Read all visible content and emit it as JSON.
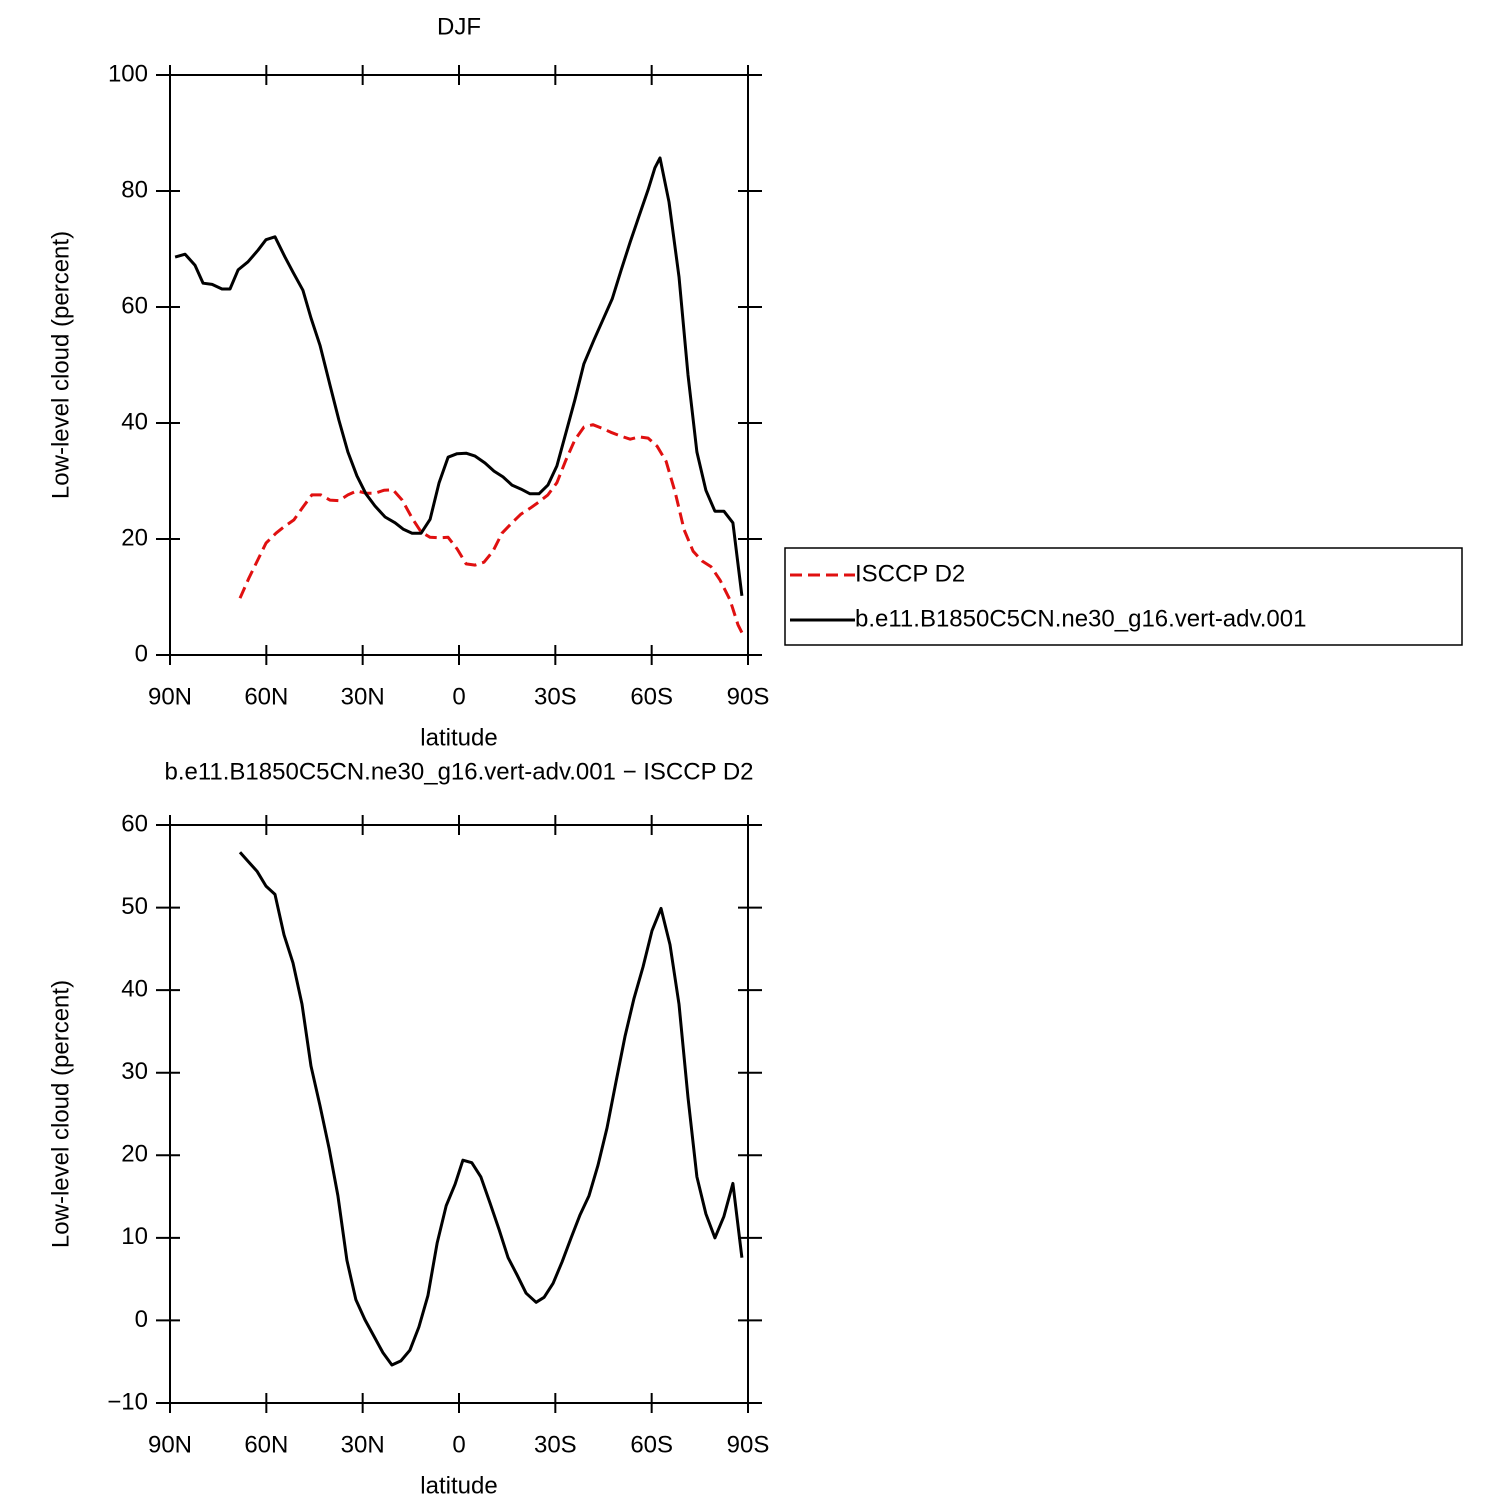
{
  "chart_data": [
    {
      "type": "line",
      "title": "DJF",
      "xlabel": "latitude",
      "ylabel": "Low-level cloud (percent)",
      "xlim": [
        90,
        -90
      ],
      "xticks": [
        {
          "value": 90,
          "label": "90N"
        },
        {
          "value": 60,
          "label": "60N"
        },
        {
          "value": 30,
          "label": "30N"
        },
        0,
        {
          "value": -30,
          "label": "30S"
        },
        {
          "value": -60,
          "label": "60S"
        },
        {
          "value": -90,
          "label": "90S"
        }
      ],
      "ylim": [
        0,
        100
      ],
      "yticks": [
        0,
        20,
        40,
        60,
        80,
        100
      ],
      "legend": "right",
      "series": [
        {
          "name": "ISCCP D2",
          "color": "#e01010",
          "linestyle": "dashed",
          "x": [
            68.2,
            65.4,
            60.1,
            57.0,
            54.5,
            51.4,
            48.6,
            45.8,
            43.0,
            40.2,
            37.4,
            34.6,
            31.8,
            29.0,
            26.2,
            23.4,
            20.6,
            17.7,
            14.6,
            11.8,
            9.0,
            6.2,
            3.4,
            0.6,
            -2.2,
            -5.0,
            -7.8,
            -10.6,
            -13.4,
            -16.5,
            -19.3,
            -22.1,
            -24.9,
            -27.7,
            -30.5,
            -33.3,
            -36.1,
            -38.9,
            -41.7,
            -44.5,
            -47.3,
            -50.1,
            -53.3,
            -56.1,
            -58.9,
            -61.7,
            -64.5,
            -67.3,
            -70.1,
            -72.9,
            -75.7,
            -78.5,
            -81.3,
            -84.4,
            -86.9,
            -88.8
          ],
          "values": [
            9.8,
            13.3,
            19.3,
            21.0,
            22.1,
            23.3,
            25.5,
            27.6,
            27.6,
            26.7,
            26.6,
            27.6,
            28.3,
            27.9,
            27.9,
            28.4,
            28.5,
            26.7,
            23.6,
            21.2,
            20.3,
            20.2,
            20.3,
            18.3,
            15.7,
            15.5,
            16.0,
            17.9,
            21.0,
            22.8,
            24.3,
            25.3,
            26.4,
            27.6,
            29.7,
            33.6,
            37.1,
            39.3,
            39.7,
            39.1,
            38.4,
            37.8,
            37.2,
            37.6,
            37.4,
            36.0,
            33.4,
            28.1,
            21.6,
            17.9,
            16.2,
            15.2,
            12.9,
            9.5,
            5.2,
            3.1
          ]
        },
        {
          "name": "b.e11.B1850C5CN.ne30_g16.vert-adv.001",
          "color": "#000000",
          "linestyle": "solid",
          "x": [
            88.4,
            85.3,
            82.2,
            79.7,
            76.9,
            73.8,
            71.3,
            68.8,
            65.7,
            62.6,
            60.1,
            57.3,
            54.2,
            51.7,
            48.6,
            46.1,
            43.3,
            40.2,
            37.4,
            34.6,
            31.8,
            29.0,
            26.2,
            23.0,
            19.9,
            17.4,
            14.6,
            11.8,
            9.0,
            6.2,
            3.4,
            0.6,
            -2.2,
            -5.0,
            -8.1,
            -10.9,
            -13.7,
            -16.5,
            -19.3,
            -22.1,
            -24.9,
            -27.7,
            -30.5,
            -33.3,
            -36.1,
            -38.9,
            -42.0,
            -44.8,
            -47.7,
            -50.5,
            -53.3,
            -56.1,
            -58.9,
            -61.0,
            -62.6,
            -65.4,
            -68.5,
            -71.3,
            -74.1,
            -76.9,
            -79.7,
            -82.5,
            -85.3,
            -88.1
          ],
          "values": [
            68.6,
            69.1,
            67.2,
            64.1,
            63.9,
            63.1,
            63.1,
            66.4,
            67.8,
            69.8,
            71.6,
            72.1,
            68.6,
            66.0,
            62.9,
            58.1,
            53.4,
            46.6,
            40.5,
            35.0,
            30.9,
            27.8,
            25.7,
            23.8,
            22.8,
            21.7,
            21.0,
            21.0,
            23.4,
            29.7,
            34.1,
            34.7,
            34.8,
            34.3,
            33.1,
            31.7,
            30.7,
            29.3,
            28.6,
            27.8,
            27.8,
            29.3,
            32.6,
            38.3,
            44.0,
            50.2,
            54.3,
            57.8,
            61.4,
            66.4,
            71.2,
            75.7,
            80.2,
            84.0,
            85.7,
            78.1,
            65.2,
            48.3,
            35.0,
            28.4,
            24.8,
            24.8,
            22.8,
            10.2
          ]
        }
      ]
    },
    {
      "type": "line",
      "title": "b.e11.B1850C5CN.ne30_g16.vert-adv.001 − ISCCP D2",
      "xlabel": "latitude",
      "ylabel": "Low-level cloud (percent)",
      "xlim": [
        90,
        -90
      ],
      "xticks": [
        {
          "value": 90,
          "label": "90N"
        },
        {
          "value": 60,
          "label": "60N"
        },
        {
          "value": 30,
          "label": "30N"
        },
        0,
        {
          "value": -30,
          "label": "30S"
        },
        {
          "value": -60,
          "label": "60S"
        },
        {
          "value": -90,
          "label": "90S"
        }
      ],
      "ylim": [
        -10,
        60
      ],
      "yticks": [
        {
          "value": -10,
          "label": "−10"
        },
        0,
        10,
        20,
        30,
        40,
        50,
        60
      ],
      "series": [
        {
          "color": "#000000",
          "linestyle": "solid",
          "x": [
            68.2,
            65.7,
            62.9,
            60.1,
            57.3,
            54.5,
            51.7,
            48.9,
            46.1,
            43.3,
            40.5,
            37.7,
            34.9,
            32.1,
            29.3,
            26.5,
            23.7,
            20.9,
            18.1,
            15.3,
            12.5,
            9.7,
            6.8,
            4.0,
            1.2,
            -1.2,
            -4.0,
            -6.8,
            -9.7,
            -12.5,
            -15.3,
            -18.1,
            -20.9,
            -24.0,
            -26.5,
            -29.3,
            -32.1,
            -34.9,
            -37.7,
            -40.5,
            -43.3,
            -46.1,
            -48.9,
            -51.7,
            -54.5,
            -57.3,
            -60.1,
            -62.9,
            -65.7,
            -68.5,
            -71.3,
            -74.1,
            -76.9,
            -79.7,
            -82.5,
            -85.3,
            -88.1
          ],
          "values": [
            56.7,
            55.6,
            54.4,
            52.6,
            51.6,
            46.7,
            43.3,
            38.3,
            30.8,
            26.0,
            20.9,
            15.1,
            7.3,
            2.5,
            0.1,
            -1.9,
            -3.9,
            -5.4,
            -4.9,
            -3.6,
            -0.8,
            3.0,
            9.4,
            13.9,
            16.5,
            19.4,
            19.1,
            17.4,
            14.2,
            11.0,
            7.6,
            5.5,
            3.3,
            2.2,
            2.8,
            4.5,
            7.1,
            10.0,
            12.8,
            15.1,
            18.8,
            23.3,
            28.9,
            34.4,
            39.0,
            42.8,
            47.2,
            49.9,
            45.5,
            38.3,
            27.0,
            17.4,
            12.9,
            10.0,
            12.6,
            16.6,
            7.6
          ]
        }
      ]
    }
  ]
}
